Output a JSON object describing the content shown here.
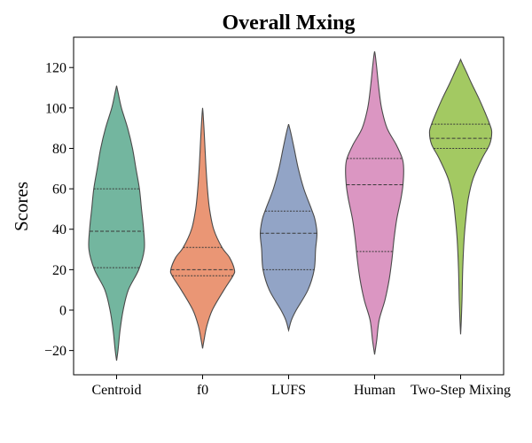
{
  "chart_data": {
    "type": "violin",
    "title": "Overall Mxing",
    "xlabel": "",
    "ylabel": "Scores",
    "ylim": [
      -32,
      135
    ],
    "yticks": [
      -20,
      0,
      20,
      40,
      60,
      80,
      100,
      120
    ],
    "categories": [
      "Centroid",
      "f0",
      "LUFS",
      "Human",
      "Two-Step Mixing"
    ],
    "series": [
      {
        "name": "Centroid",
        "color": "#73b69f",
        "quartiles": [
          21,
          39,
          60
        ],
        "profile": [
          [
            -25,
            0.0
          ],
          [
            -20,
            0.04
          ],
          [
            -10,
            0.1
          ],
          [
            0,
            0.19
          ],
          [
            10,
            0.34
          ],
          [
            20,
            0.64
          ],
          [
            30,
            0.8
          ],
          [
            40,
            0.78
          ],
          [
            50,
            0.72
          ],
          [
            60,
            0.66
          ],
          [
            70,
            0.56
          ],
          [
            80,
            0.46
          ],
          [
            90,
            0.32
          ],
          [
            100,
            0.14
          ],
          [
            107,
            0.05
          ],
          [
            111,
            0.0
          ]
        ]
      },
      {
        "name": "f0",
        "color": "#ea9675",
        "quartiles": [
          17,
          20,
          31
        ],
        "profile": [
          [
            -19,
            0.0
          ],
          [
            -15,
            0.04
          ],
          [
            -8,
            0.12
          ],
          [
            0,
            0.28
          ],
          [
            10,
            0.62
          ],
          [
            17,
            0.88
          ],
          [
            20,
            0.92
          ],
          [
            26,
            0.78
          ],
          [
            31,
            0.56
          ],
          [
            40,
            0.32
          ],
          [
            50,
            0.2
          ],
          [
            60,
            0.14
          ],
          [
            70,
            0.1
          ],
          [
            80,
            0.07
          ],
          [
            90,
            0.04
          ],
          [
            97,
            0.015
          ],
          [
            100,
            0.0
          ]
        ]
      },
      {
        "name": "LUFS",
        "color": "#92a4c6",
        "quartiles": [
          20,
          38,
          49
        ],
        "profile": [
          [
            -10,
            0.0
          ],
          [
            -5,
            0.08
          ],
          [
            0,
            0.22
          ],
          [
            10,
            0.56
          ],
          [
            20,
            0.74
          ],
          [
            30,
            0.78
          ],
          [
            38,
            0.82
          ],
          [
            45,
            0.76
          ],
          [
            50,
            0.66
          ],
          [
            60,
            0.44
          ],
          [
            70,
            0.28
          ],
          [
            80,
            0.16
          ],
          [
            88,
            0.06
          ],
          [
            92,
            0.0
          ]
        ]
      },
      {
        "name": "Human",
        "color": "#db96c2",
        "quartiles": [
          29,
          62,
          75
        ],
        "profile": [
          [
            -22,
            0.0
          ],
          [
            -15,
            0.06
          ],
          [
            -5,
            0.13
          ],
          [
            5,
            0.3
          ],
          [
            15,
            0.42
          ],
          [
            25,
            0.5
          ],
          [
            35,
            0.56
          ],
          [
            45,
            0.64
          ],
          [
            55,
            0.76
          ],
          [
            62,
            0.82
          ],
          [
            70,
            0.84
          ],
          [
            75,
            0.8
          ],
          [
            82,
            0.62
          ],
          [
            90,
            0.36
          ],
          [
            100,
            0.2
          ],
          [
            110,
            0.12
          ],
          [
            120,
            0.06
          ],
          [
            126,
            0.02
          ],
          [
            128,
            0.0
          ]
        ]
      },
      {
        "name": "Two-Step Mixing",
        "color": "#a3c962",
        "quartiles": [
          80,
          85,
          92
        ],
        "profile": [
          [
            -12,
            0.0
          ],
          [
            -5,
            0.02
          ],
          [
            5,
            0.04
          ],
          [
            20,
            0.06
          ],
          [
            35,
            0.1
          ],
          [
            45,
            0.15
          ],
          [
            55,
            0.22
          ],
          [
            65,
            0.36
          ],
          [
            75,
            0.62
          ],
          [
            82,
            0.84
          ],
          [
            88,
            0.9
          ],
          [
            92,
            0.84
          ],
          [
            98,
            0.7
          ],
          [
            105,
            0.52
          ],
          [
            112,
            0.32
          ],
          [
            118,
            0.16
          ],
          [
            122,
            0.05
          ],
          [
            124,
            0.0
          ]
        ]
      }
    ]
  }
}
